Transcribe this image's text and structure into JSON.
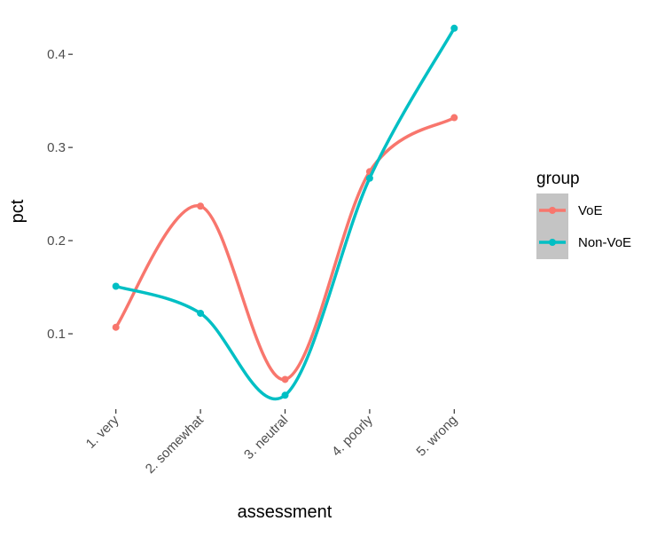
{
  "chart_data": {
    "type": "line",
    "xlabel": "assessment",
    "ylabel": "pct",
    "categories": [
      "1. very",
      "2. somewhat",
      "3. neutral",
      "4. poorly",
      "5. wrong"
    ],
    "yticks": [
      0.1,
      0.2,
      0.3,
      0.4
    ],
    "ytick_labels": [
      "0.1",
      "0.2",
      "0.3",
      "0.4"
    ],
    "ylim": [
      0.02,
      0.444
    ],
    "grid": false,
    "smoothed": true,
    "legend": {
      "title": "group",
      "placement": "right"
    },
    "series": [
      {
        "name": "VoE",
        "color": "#F8766D",
        "values": [
          0.107,
          0.237,
          0.051,
          0.274,
          0.332
        ]
      },
      {
        "name": "Non-VoE",
        "color": "#00BFC4",
        "values": [
          0.151,
          0.122,
          0.034,
          0.267,
          0.428
        ]
      }
    ]
  }
}
